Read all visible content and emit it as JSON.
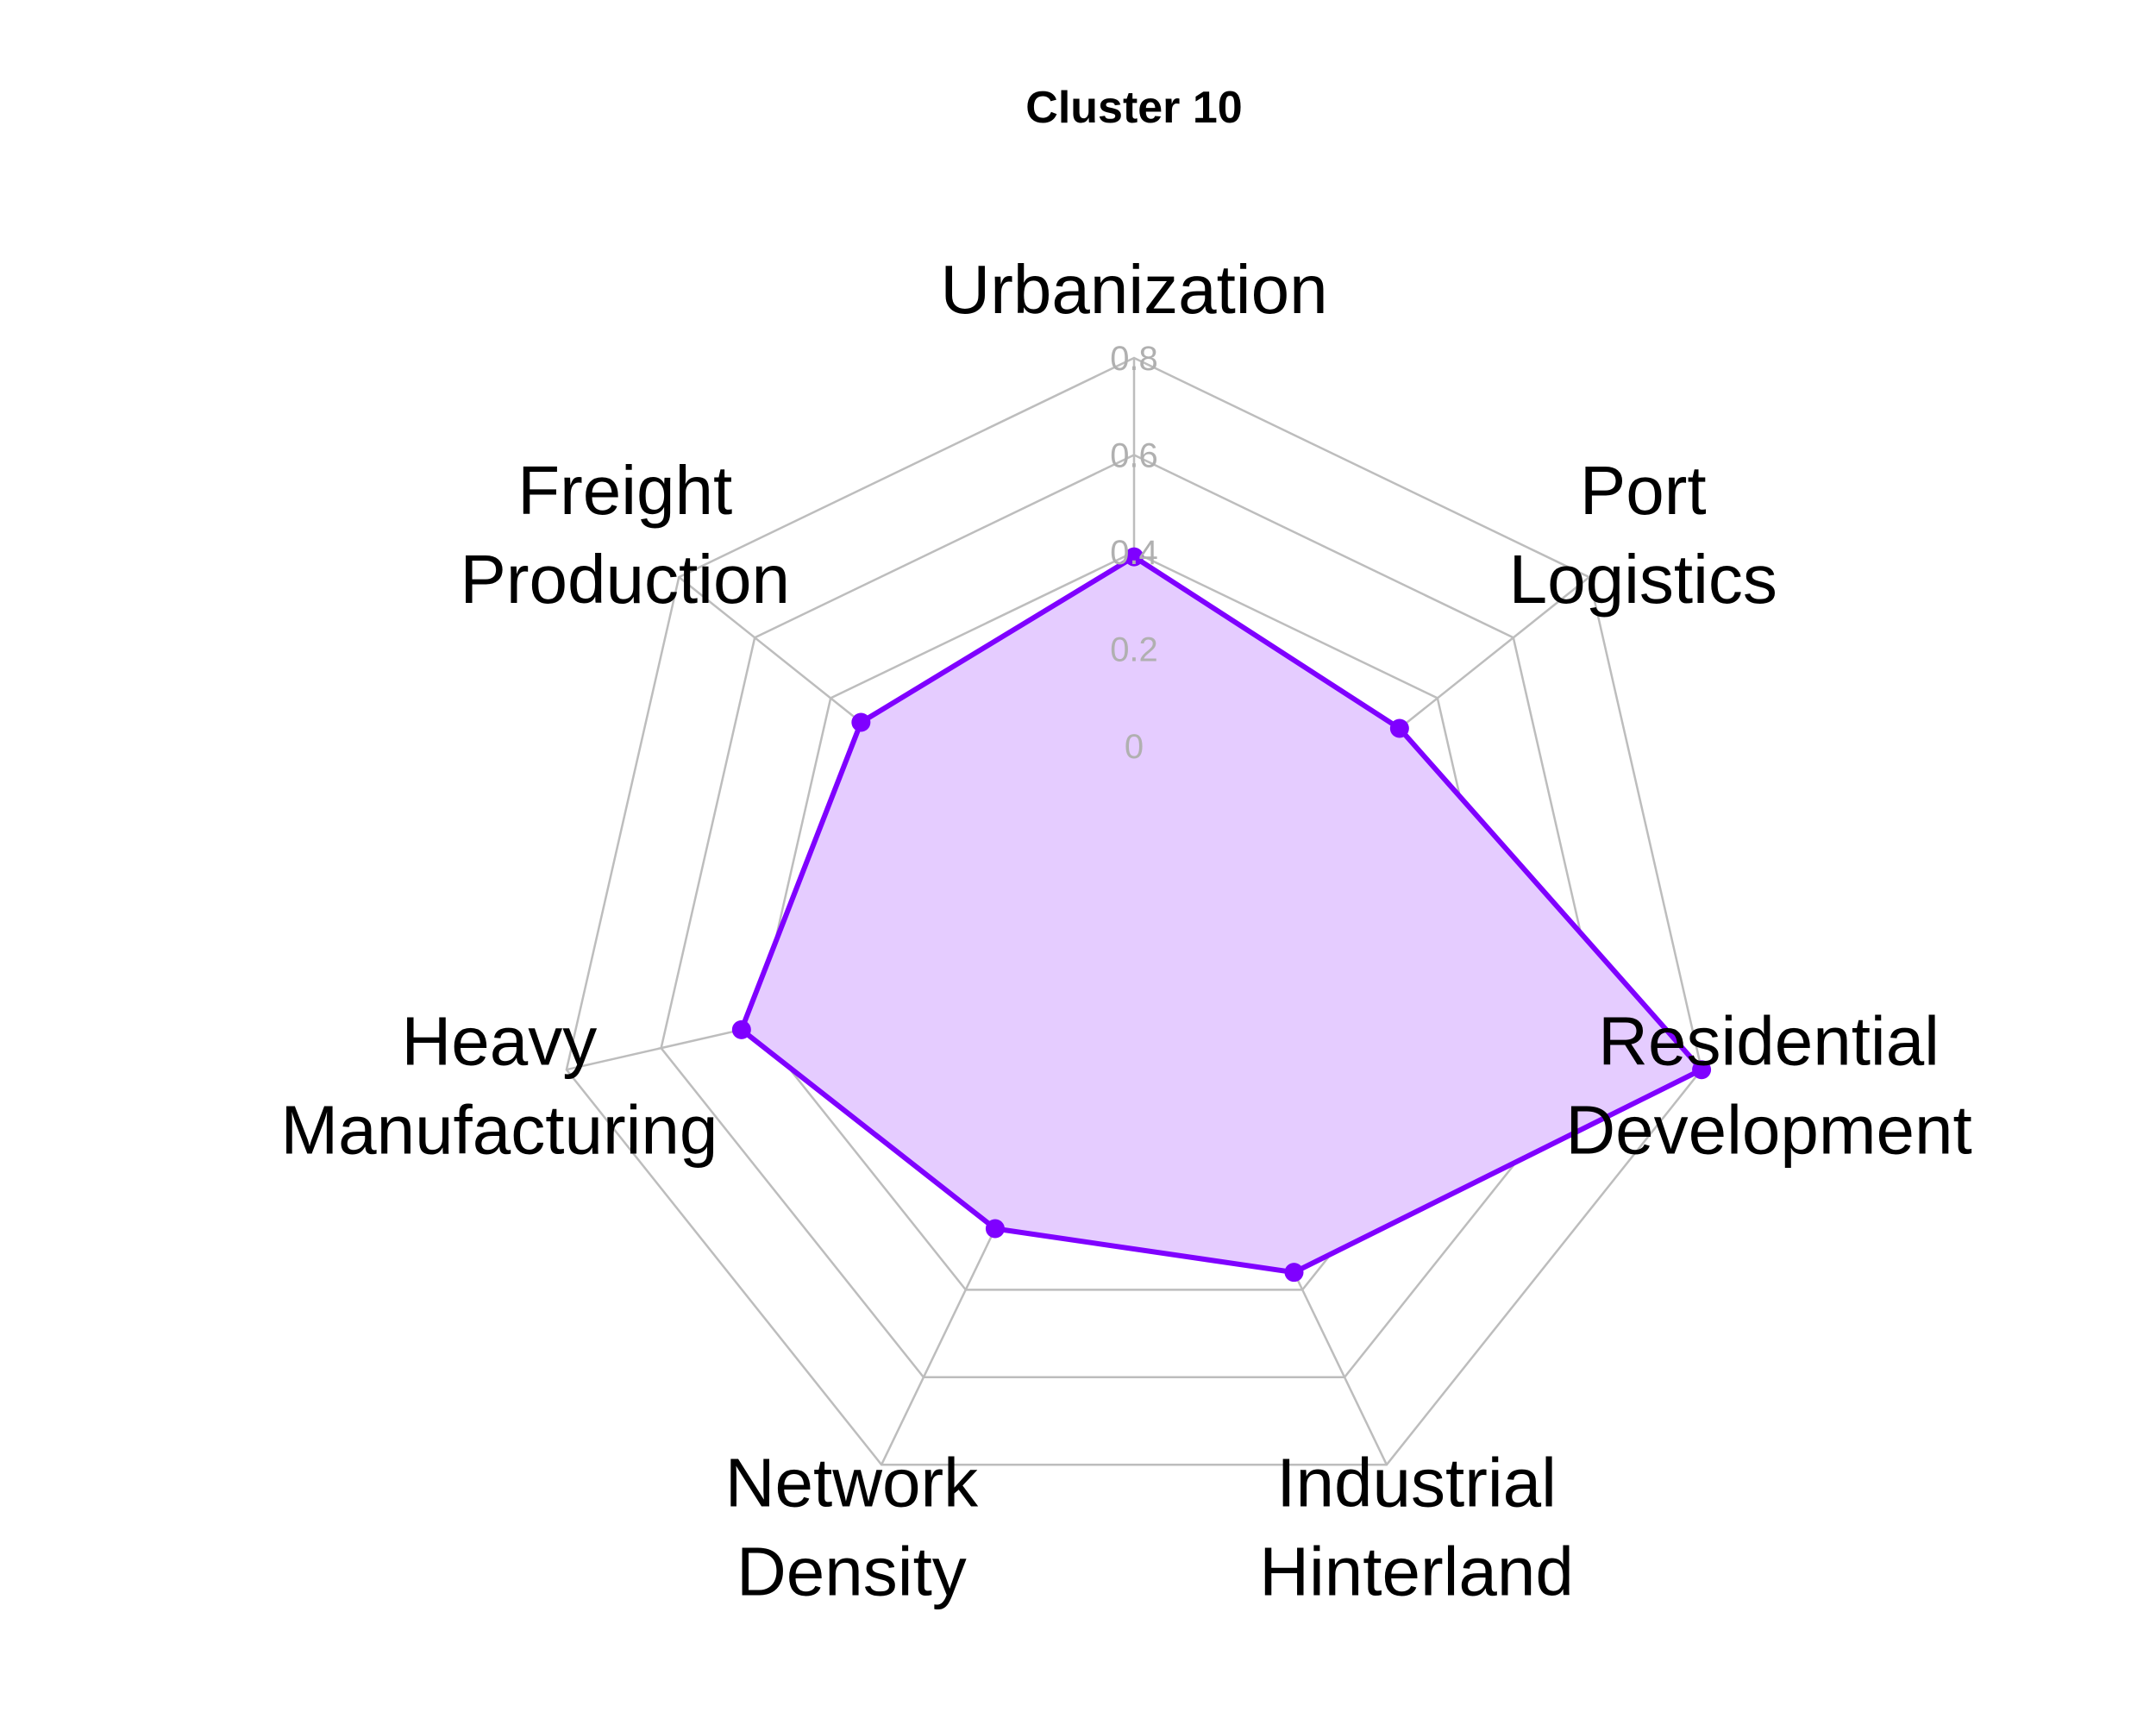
{
  "chart_data": {
    "type": "radar",
    "title": "Cluster 10",
    "axes": [
      [
        "Urbanization"
      ],
      [
        "Port",
        "Logistics"
      ],
      [
        "Residential",
        "Development"
      ],
      [
        "Industrial",
        "Hinterland"
      ],
      [
        "Network",
        "Density"
      ],
      [
        "Heavy",
        "Manufacturing"
      ],
      [
        "Freight",
        "Production"
      ]
    ],
    "series": [
      {
        "values": [
          0.39,
          0.3,
          0.8,
          0.36,
          0.26,
          0.43,
          0.32
        ]
      }
    ],
    "rlim": [
      -0.4,
      0.8
    ],
    "ticks": [
      0,
      0.2,
      0.4,
      0.6,
      0.8
    ],
    "tick_labels": [
      "0",
      "0.2",
      "0.4",
      "0.6",
      "0.8"
    ],
    "grid": true,
    "colors": {
      "line": "#7f00ff",
      "fill": "#e5ccff",
      "grid": "#bdbdbd",
      "tick": "#b0b0b0"
    }
  }
}
